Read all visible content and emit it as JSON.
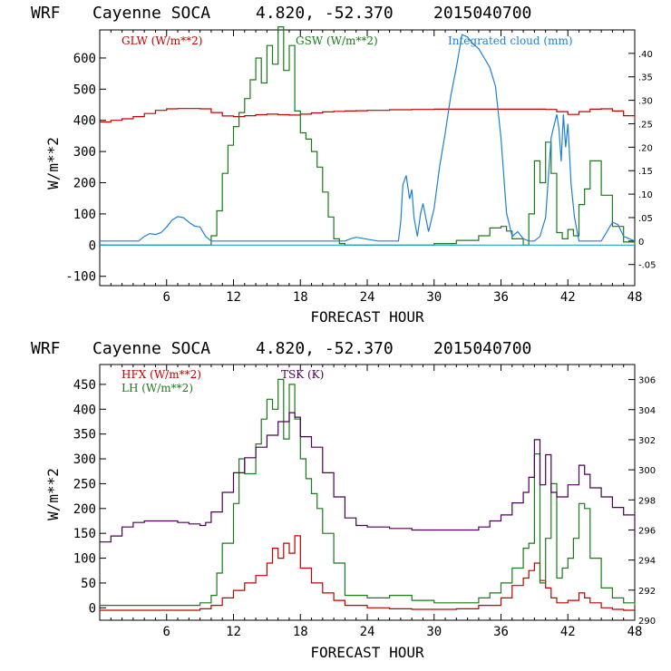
{
  "chart_data": [
    {
      "type": "line",
      "title": {
        "model": "WRF",
        "station": "Cayenne SOCA",
        "coords": "4.820, -52.370",
        "date": "2015040700"
      },
      "xlabel": "FORECAST HOUR",
      "ylabel": "W/m**2",
      "xlim": [
        0,
        48
      ],
      "ylim": [
        -130,
        690
      ],
      "x_ticks": [
        6,
        12,
        18,
        24,
        30,
        36,
        42,
        48
      ],
      "y_ticks": [
        -100,
        0,
        100,
        200,
        300,
        400,
        500,
        600
      ],
      "y2lim": [
        -0.095,
        0.45
      ],
      "y2_ticks": [
        -0.05,
        0,
        0.05,
        0.1,
        0.15,
        0.2,
        0.25,
        0.3,
        0.35,
        0.4
      ],
      "y2_tick_labels": [
        "-.05",
        "0",
        ".05",
        ".10",
        ".15",
        ".20",
        ".25",
        ".30",
        ".35",
        ".40"
      ],
      "series": [
        {
          "name": "GLW (W/m**2)",
          "color": "#c00000",
          "axis": "left",
          "x": [
            0,
            1,
            2,
            3,
            4,
            5,
            6,
            7,
            8,
            9,
            10,
            11,
            12,
            13,
            14,
            15,
            16,
            17,
            18,
            19,
            20,
            21,
            22,
            23,
            24,
            26,
            28,
            30,
            32,
            34,
            36,
            38,
            40,
            41,
            42,
            43,
            44,
            45,
            46,
            47,
            48
          ],
          "values": [
            395,
            400,
            405,
            412,
            422,
            432,
            437,
            438,
            438,
            437,
            425,
            414,
            412,
            415,
            418,
            420,
            418,
            417,
            420,
            424,
            427,
            429,
            430,
            431,
            432,
            434,
            435,
            436,
            436,
            436,
            436,
            436,
            435,
            428,
            419,
            428,
            436,
            437,
            430,
            415,
            405
          ]
        },
        {
          "name": "GSW (W/m**2)",
          "color": "#1a7a1a",
          "axis": "left",
          "x": [
            0,
            9,
            10,
            10.5,
            11,
            11.5,
            12,
            12.5,
            13,
            13.5,
            14,
            14.5,
            15,
            15.5,
            16,
            16.5,
            17,
            17.5,
            18,
            18.5,
            19,
            19.5,
            20,
            20.5,
            21,
            21.5,
            22,
            28,
            30,
            32,
            34,
            35,
            36,
            36.5,
            37,
            38,
            38.5,
            39,
            39.5,
            40,
            40.5,
            41,
            41.5,
            42,
            42.5,
            43,
            43.5,
            44,
            45,
            46,
            47,
            48
          ],
          "values": [
            0,
            0,
            30,
            110,
            230,
            320,
            380,
            425,
            470,
            530,
            600,
            520,
            640,
            580,
            700,
            560,
            640,
            430,
            360,
            340,
            300,
            250,
            170,
            90,
            20,
            5,
            0,
            0,
            5,
            15,
            30,
            55,
            60,
            45,
            20,
            0,
            100,
            270,
            200,
            330,
            230,
            40,
            20,
            50,
            30,
            130,
            180,
            270,
            160,
            60,
            10,
            0
          ]
        },
        {
          "name": "Integrated cloud (mm)",
          "color": "#1f7fd9",
          "axis": "right",
          "x": [
            0,
            3.5,
            4,
            4.5,
            5,
            5.5,
            6,
            6.5,
            7,
            7.5,
            8,
            8.5,
            9,
            9.5,
            10,
            22,
            22.5,
            23,
            23.5,
            24,
            24.5,
            25,
            26.8,
            27,
            27.2,
            27.5,
            27.8,
            28,
            28.2,
            28.5,
            28.8,
            29,
            29.5,
            30,
            30.5,
            31,
            31.5,
            32,
            32.5,
            33,
            33.5,
            34,
            34.5,
            35,
            35.5,
            36,
            36.5,
            37,
            37.5,
            38,
            38.5,
            39,
            39.5,
            40,
            40.5,
            41,
            41.2,
            41.4,
            41.6,
            41.8,
            42,
            42.3,
            42.6,
            43,
            45,
            45.5,
            46,
            46.5,
            47,
            48
          ],
          "values": [
            0,
            0,
            0.01,
            0.016,
            0.014,
            0.018,
            0.03,
            0.045,
            0.052,
            0.05,
            0.04,
            0.032,
            0.03,
            0.01,
            0,
            0,
            0.005,
            0.008,
            0.006,
            0.004,
            0.002,
            0,
            0,
            0.04,
            0.12,
            0.14,
            0.09,
            0.11,
            0.05,
            0.01,
            0.06,
            0.08,
            0.02,
            0.07,
            0.16,
            0.23,
            0.31,
            0.37,
            0.44,
            0.435,
            0.42,
            0.41,
            0.39,
            0.37,
            0.33,
            0.22,
            0.06,
            0.01,
            0.02,
            0.005,
            0,
            0,
            0.01,
            0.05,
            0.22,
            0.27,
            0.24,
            0.17,
            0.27,
            0.2,
            0.25,
            0.12,
            0.05,
            0,
            0,
            0.02,
            0.04,
            0.035,
            0.01,
            0
          ]
        },
        {
          "name": "zero",
          "color": "#1f9fd9",
          "axis": "left",
          "x": [
            0,
            48
          ],
          "values": [
            0,
            0
          ]
        }
      ]
    },
    {
      "type": "line",
      "title": {
        "model": "WRF",
        "station": "Cayenne SOCA",
        "coords": "4.820, -52.370",
        "date": "2015040700"
      },
      "xlabel": "FORECAST HOUR",
      "ylabel": "W/m**2",
      "xlim": [
        0,
        48
      ],
      "ylim": [
        -25,
        490
      ],
      "x_ticks": [
        6,
        12,
        18,
        24,
        30,
        36,
        42,
        48
      ],
      "y_ticks": [
        0,
        50,
        100,
        150,
        200,
        250,
        300,
        350,
        400,
        450
      ],
      "y2lim": [
        290,
        307
      ],
      "y2_ticks": [
        290,
        292,
        294,
        296,
        298,
        300,
        302,
        304,
        306
      ],
      "y2_tick_labels": [
        "290",
        "292",
        "294",
        "296",
        "298",
        "300",
        "302",
        "304",
        "306"
      ],
      "series": [
        {
          "name": "HFX (W/m**2)",
          "color": "#c00000",
          "axis": "left",
          "x": [
            0,
            9,
            10,
            11,
            12,
            13,
            14,
            15,
            15.5,
            16,
            16.5,
            17,
            17.5,
            18,
            19,
            20,
            21,
            22,
            24,
            26,
            28,
            30,
            32,
            34,
            36,
            37,
            38,
            38.5,
            39,
            39.5,
            40,
            40.5,
            41,
            42,
            43,
            43.5,
            44,
            45,
            46,
            47,
            48
          ],
          "values": [
            -5,
            -2,
            5,
            20,
            35,
            50,
            65,
            90,
            120,
            100,
            130,
            110,
            145,
            80,
            50,
            30,
            15,
            5,
            0,
            -2,
            -3,
            -3,
            -2,
            5,
            20,
            45,
            60,
            75,
            90,
            55,
            40,
            20,
            10,
            15,
            30,
            20,
            10,
            0,
            -3,
            -5,
            -5
          ]
        },
        {
          "name": "LH (W/m**2)",
          "color": "#1a7a1a",
          "axis": "left",
          "x": [
            0,
            9,
            10,
            10.5,
            11,
            12,
            12.5,
            13,
            14,
            14.5,
            15,
            15.5,
            16,
            16.5,
            17,
            17.5,
            18,
            18.5,
            19,
            19.5,
            20,
            21,
            22,
            24,
            26,
            28,
            30,
            32,
            34,
            35,
            36,
            37,
            38,
            38.5,
            39,
            39.5,
            40,
            40.5,
            41,
            41.5,
            42,
            42.5,
            43,
            43.5,
            44,
            45,
            46,
            47,
            48
          ],
          "values": [
            5,
            10,
            25,
            70,
            130,
            210,
            300,
            270,
            330,
            380,
            420,
            400,
            460,
            340,
            450,
            380,
            300,
            260,
            230,
            200,
            150,
            90,
            25,
            20,
            25,
            15,
            10,
            10,
            20,
            30,
            50,
            80,
            120,
            130,
            310,
            50,
            140,
            250,
            60,
            80,
            100,
            140,
            210,
            200,
            100,
            40,
            20,
            10,
            5
          ]
        },
        {
          "name": "TSK (K)",
          "color": "#4b0055",
          "axis": "right",
          "x": [
            0,
            1,
            2,
            3,
            4,
            5,
            6,
            7,
            8,
            9,
            9.5,
            10,
            11,
            12,
            13,
            14,
            15,
            16,
            17,
            17.5,
            18,
            19,
            20,
            21,
            22,
            23,
            24,
            26,
            28,
            30,
            32,
            34,
            35,
            36,
            37,
            38,
            38.5,
            39,
            39.5,
            40,
            40.5,
            41,
            42,
            43,
            43.5,
            44,
            45,
            46,
            47,
            48
          ],
          "values": [
            295.2,
            295.6,
            296.2,
            296.5,
            296.6,
            296.6,
            296.6,
            296.5,
            296.4,
            296.3,
            296.5,
            297.2,
            298.5,
            299.8,
            300.8,
            301.5,
            302.3,
            303.2,
            303.8,
            303.5,
            302.2,
            301.5,
            299.8,
            298.2,
            296.8,
            296.3,
            296.2,
            296.1,
            296.0,
            296.0,
            296.0,
            296.2,
            296.6,
            297.0,
            297.8,
            298.5,
            299.5,
            302.0,
            299.0,
            301.0,
            298.5,
            298.2,
            299.0,
            300.3,
            299.7,
            298.8,
            298.2,
            297.5,
            297.0,
            295.5
          ]
        }
      ]
    }
  ],
  "panels": [
    {
      "title": {
        "model": "WRF",
        "station": "Cayenne SOCA",
        "coords": "4.820, -52.370",
        "date": "2015040700"
      },
      "legend": [
        {
          "label": "GLW (W/m**2)",
          "color": "#c00000"
        },
        {
          "label": "GSW (W/m**2)",
          "color": "#1a7a1a"
        },
        {
          "label": "Integrated cloud (mm)",
          "color": "#1f7fd9"
        }
      ]
    },
    {
      "title": {
        "model": "WRF",
        "station": "Cayenne SOCA",
        "coords": "4.820, -52.370",
        "date": "2015040700"
      },
      "legend": [
        {
          "label": "HFX (W/m**2)",
          "color": "#c00000"
        },
        {
          "label": "LH (W/m**2)",
          "color": "#1a7a1a"
        },
        {
          "label": "TSK (K)",
          "color": "#4b0055"
        }
      ]
    }
  ]
}
